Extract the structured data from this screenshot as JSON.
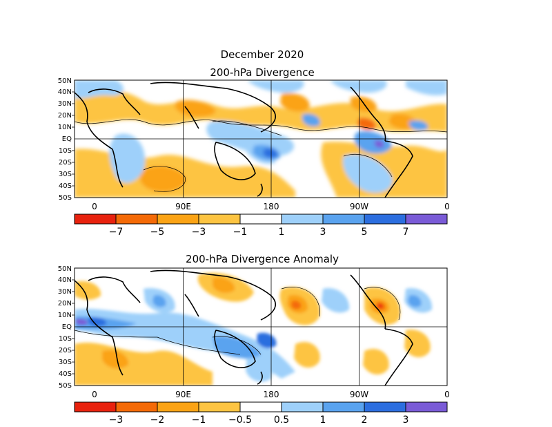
{
  "figure": {
    "title_line1": "December 2020",
    "title_line2": "200-hPa Divergence",
    "title_bottom": "200-hPa Divergence Anomaly"
  },
  "axes": {
    "lat_labels": [
      "50N",
      "40N",
      "30N",
      "20N",
      "10N",
      "EQ",
      "10S",
      "20S",
      "30S",
      "40S",
      "50S"
    ],
    "lon_labels": [
      "0",
      "90E",
      "180",
      "90W",
      "0"
    ]
  },
  "colors": {
    "neg4": "#e8220e",
    "neg3": "#f46a07",
    "neg2": "#fba315",
    "neg1": "#fdc442",
    "zero": "#ffffff",
    "pos1": "#9ed0fa",
    "pos2": "#5aa3ef",
    "pos3": "#2c6edf",
    "pos4": "#7a5bd7"
  },
  "colorbar_top": {
    "labels": [
      "−7",
      "−5",
      "−3",
      "−1",
      "1",
      "3",
      "5",
      "7"
    ]
  },
  "colorbar_bottom": {
    "labels": [
      "−3",
      "−2",
      "−1",
      "−0.5",
      "0.5",
      "1",
      "2",
      "3"
    ]
  }
}
